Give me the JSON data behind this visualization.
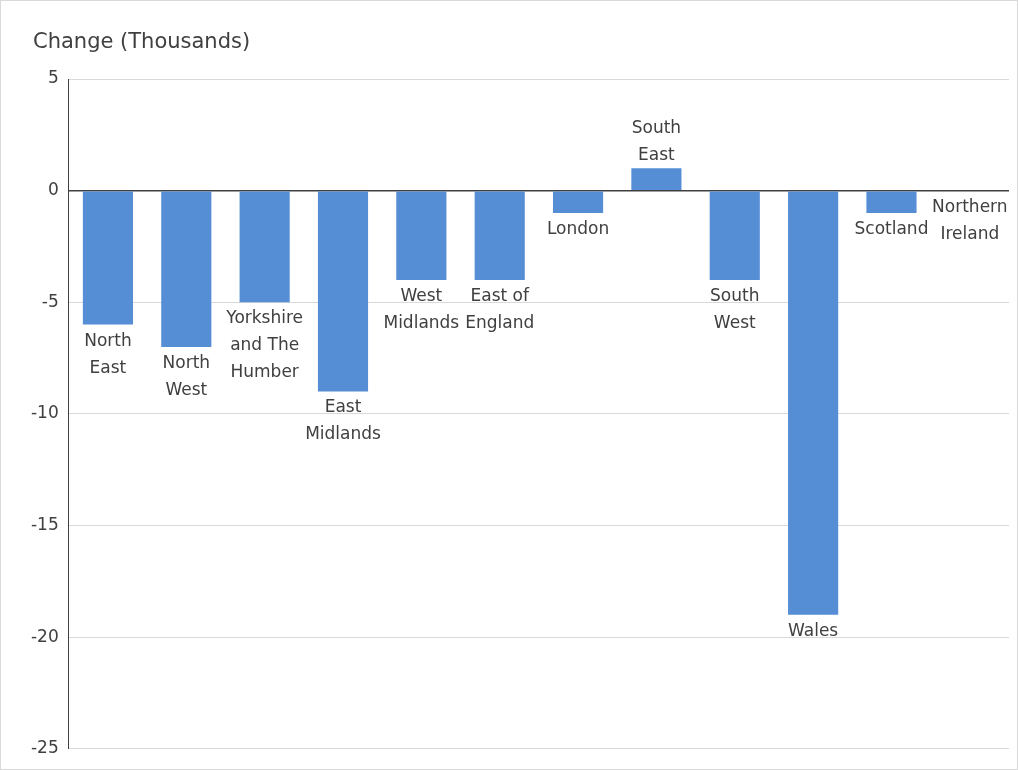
{
  "chart_data": {
    "type": "bar",
    "ylabel": "Change (Thousands)",
    "categories": [
      "North East",
      "North West",
      "Yorkshire and The Humber",
      "East Midlands",
      "West Midlands",
      "East of England",
      "London",
      "South East",
      "South West",
      "Wales",
      "Scotland",
      "Northern Ireland"
    ],
    "values": [
      -6,
      -7,
      -5,
      -9,
      -4,
      -4,
      -1,
      1,
      -4,
      -19,
      -1,
      0
    ],
    "color": "#558ed5",
    "ylim": [
      -25,
      5
    ],
    "yticks": [
      -25,
      -20,
      -15,
      -10,
      -5,
      0,
      5
    ],
    "grid": "y",
    "legend": false
  }
}
